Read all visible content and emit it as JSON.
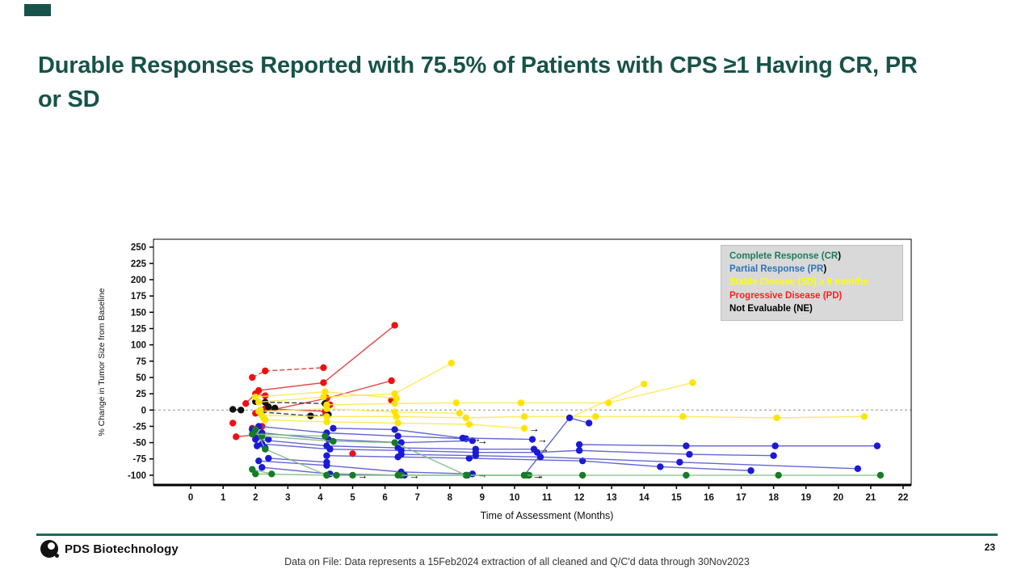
{
  "accent_color": "#17534A",
  "title": "Durable Responses Reported with 75.5% of Patients with CPS ≥1 Having CR, PR or SD",
  "legend": {
    "items": [
      {
        "id": "CR",
        "label": "Complete Response (CR",
        "tail": ")",
        "color": "#1F7A5C"
      },
      {
        "id": "PR",
        "label": "Partial Response (PR",
        "tail": ")",
        "color": "#2E74B5"
      },
      {
        "id": "SD",
        "label": "Stable Disease (SD) ≥ 6 months",
        "tail": "",
        "color": "#FFFF00"
      },
      {
        "id": "PD",
        "label": "Progressive Disease (PD)",
        "tail": "",
        "color": "#FF2020"
      },
      {
        "id": "NE",
        "label": "Not Evaluable (NE)",
        "tail": "",
        "color": "#000000"
      }
    ]
  },
  "chart_data": {
    "type": "line",
    "title": "",
    "xlabel": "Time of Assessment (Months)",
    "ylabel": "% Change in Tumor Size from Baseline",
    "xlim": [
      -1.15,
      22.25
    ],
    "ylim": [
      -115,
      262
    ],
    "x_ticks": [
      0,
      1,
      2,
      3,
      4,
      5,
      6,
      7,
      8,
      9,
      10,
      11,
      12,
      13,
      14,
      15,
      16,
      17,
      18,
      19,
      20,
      21,
      22
    ],
    "y_ticks": [
      250,
      225,
      200,
      175,
      150,
      125,
      100,
      75,
      50,
      25,
      0,
      -25,
      -50,
      -75,
      -100
    ],
    "zero_line": 0,
    "grid": false,
    "legend_position": "top-right",
    "colors": {
      "CR": {
        "marker": "#177B27",
        "line": "#7FBF7F"
      },
      "PR": {
        "marker": "#1A1AD6",
        "line": "#5555D0"
      },
      "SD": {
        "marker": "#FFE400",
        "line": "#FFE84D"
      },
      "PD": {
        "marker": "#EE1111",
        "line": "#E03333"
      },
      "NE": {
        "marker": "#101010",
        "line": "#2A2A2A"
      }
    },
    "series": [
      {
        "group": "PD",
        "dash": true,
        "points": [
          [
            1.9,
            50
          ],
          [
            2.3,
            60
          ],
          [
            4.1,
            65
          ]
        ]
      },
      {
        "group": "PD",
        "points": [
          [
            2.1,
            30
          ],
          [
            4.1,
            42
          ],
          [
            6.3,
            130
          ]
        ]
      },
      {
        "group": "PD",
        "points": [
          [
            1.7,
            10
          ],
          [
            2.0,
            25
          ],
          [
            2.3,
            22
          ]
        ]
      },
      {
        "group": "PD",
        "points": [
          [
            2.0,
            -5
          ],
          [
            4.2,
            18
          ],
          [
            6.2,
            45
          ]
        ]
      },
      {
        "group": "PD",
        "points": [
          [
            2.3,
            2
          ],
          [
            4.15,
            -2
          ],
          [
            4.3,
            8
          ]
        ]
      },
      {
        "group": "PD",
        "points": [
          [
            1.4,
            -41
          ],
          [
            2.0,
            -38
          ]
        ]
      },
      {
        "group": "PD",
        "points": [
          [
            1.3,
            -20
          ]
        ]
      },
      {
        "group": "PD",
        "points": [
          [
            5.0,
            -67
          ]
        ]
      },
      {
        "group": "PD",
        "points": [
          [
            1.9,
            -28
          ],
          [
            2.2,
            -25
          ]
        ]
      },
      {
        "group": "PD",
        "points": [
          [
            6.2,
            15
          ]
        ]
      },
      {
        "group": "NE",
        "points": [
          [
            1.3,
            1
          ],
          [
            1.55,
            0
          ]
        ]
      },
      {
        "group": "NE",
        "dash": true,
        "points": [
          [
            2.0,
            13
          ],
          [
            2.3,
            12
          ],
          [
            4.15,
            10
          ]
        ]
      },
      {
        "group": "NE",
        "dash": true,
        "points": [
          [
            2.2,
            -3
          ],
          [
            3.7,
            -9
          ],
          [
            4.25,
            -7
          ]
        ]
      },
      {
        "group": "NE",
        "points": [
          [
            2.4,
            5
          ],
          [
            2.6,
            3
          ]
        ]
      },
      {
        "group": "SD",
        "points": [
          [
            2.1,
            12
          ],
          [
            4.1,
            20
          ],
          [
            6.3,
            25
          ],
          [
            8.05,
            72
          ]
        ]
      },
      {
        "group": "SD",
        "points": [
          [
            4.2,
            8
          ],
          [
            6.3,
            10
          ],
          [
            8.2,
            11
          ],
          [
            10.2,
            11
          ],
          [
            12.9,
            11
          ],
          [
            15.5,
            42
          ]
        ]
      },
      {
        "group": "SD",
        "points": [
          [
            2.2,
            -8
          ],
          [
            4.2,
            -10
          ],
          [
            6.35,
            -10
          ],
          [
            8.5,
            -12
          ],
          [
            10.3,
            -10
          ],
          [
            12.5,
            -10
          ],
          [
            15.2,
            -10
          ],
          [
            18.1,
            -12
          ],
          [
            20.8,
            -10
          ]
        ]
      },
      {
        "group": "SD",
        "arrow": true,
        "points": [
          [
            2.3,
            -15
          ],
          [
            4.2,
            -18
          ],
          [
            6.4,
            -20
          ],
          [
            8.6,
            -22
          ],
          [
            10.3,
            -28
          ]
        ]
      },
      {
        "group": "SD",
        "points": [
          [
            2.0,
            20
          ],
          [
            4.15,
            28
          ],
          [
            6.35,
            18
          ]
        ]
      },
      {
        "group": "SD",
        "points": [
          [
            2.1,
            -2
          ],
          [
            4.2,
            2
          ],
          [
            6.3,
            -3
          ],
          [
            8.3,
            -5
          ]
        ]
      },
      {
        "group": "SD",
        "points": [
          [
            2.15,
            0
          ],
          [
            2.25,
            -12
          ]
        ]
      },
      {
        "group": "SD",
        "points": [
          [
            11.7,
            -12
          ],
          [
            14.0,
            40
          ]
        ]
      },
      {
        "group": "PR",
        "arrow": true,
        "points": [
          [
            2.1,
            -25
          ],
          [
            4.2,
            -35
          ],
          [
            6.4,
            -40
          ],
          [
            8.5,
            -44
          ]
        ]
      },
      {
        "group": "PR",
        "arrow": true,
        "points": [
          [
            2.2,
            -35
          ],
          [
            4.25,
            -45
          ],
          [
            6.5,
            -50
          ],
          [
            8.7,
            -47
          ]
        ]
      },
      {
        "group": "PR",
        "arrow": true,
        "points": [
          [
            2.0,
            -45
          ],
          [
            4.2,
            -55
          ],
          [
            6.4,
            -58
          ],
          [
            8.8,
            -60
          ],
          [
            10.6,
            -60
          ]
        ]
      },
      {
        "group": "PR",
        "points": [
          [
            2.2,
            -52
          ],
          [
            4.3,
            -60
          ],
          [
            6.5,
            -62
          ],
          [
            8.8,
            -65
          ],
          [
            10.7,
            -65
          ],
          [
            12.0,
            -62
          ],
          [
            15.4,
            -68
          ],
          [
            18.0,
            -70
          ]
        ]
      },
      {
        "group": "PR",
        "points": [
          [
            12.0,
            -53
          ],
          [
            15.3,
            -55
          ],
          [
            18.05,
            -55
          ],
          [
            21.2,
            -55
          ]
        ]
      },
      {
        "group": "PR",
        "points": [
          [
            10.3,
            -100
          ],
          [
            11.7,
            -12
          ],
          [
            12.3,
            -20
          ]
        ]
      },
      {
        "group": "PR",
        "points": [
          [
            4.2,
            -70
          ],
          [
            6.4,
            -72
          ],
          [
            8.6,
            -74
          ],
          [
            12.1,
            -78
          ],
          [
            14.5,
            -87
          ],
          [
            17.3,
            -93
          ]
        ]
      },
      {
        "group": "PR",
        "points": [
          [
            6.5,
            -68
          ],
          [
            8.8,
            -70
          ],
          [
            10.8,
            -72
          ],
          [
            15.1,
            -80
          ],
          [
            20.6,
            -90
          ]
        ]
      },
      {
        "group": "PR",
        "arrow": true,
        "points": [
          [
            2.1,
            -78
          ],
          [
            4.2,
            -85
          ],
          [
            6.5,
            -95
          ],
          [
            8.7,
            -98
          ]
        ]
      },
      {
        "group": "PR",
        "arrow": true,
        "points": [
          [
            2.2,
            -88
          ],
          [
            4.3,
            -98
          ],
          [
            6.6,
            -100
          ]
        ]
      },
      {
        "group": "PR",
        "points": [
          [
            1.9,
            -30
          ],
          [
            2.1,
            -40
          ],
          [
            2.4,
            -45
          ]
        ]
      },
      {
        "group": "PR",
        "points": [
          [
            2.4,
            -74
          ],
          [
            4.2,
            -80
          ]
        ]
      },
      {
        "group": "PR",
        "points": [
          [
            2.05,
            -55
          ],
          [
            2.3,
            -58
          ]
        ]
      },
      {
        "group": "PR",
        "arrow": true,
        "points": [
          [
            4.4,
            -28
          ],
          [
            6.3,
            -30
          ],
          [
            8.4,
            -43
          ],
          [
            10.55,
            -45
          ]
        ]
      },
      {
        "group": "CR",
        "arrow": true,
        "points": [
          [
            2.0,
            -30
          ],
          [
            2.3,
            -60
          ],
          [
            4.2,
            -100
          ],
          [
            6.5,
            -100
          ],
          [
            8.5,
            -100
          ],
          [
            10.4,
            -100
          ]
        ]
      },
      {
        "group": "CR",
        "arrow": true,
        "points": [
          [
            2.2,
            -40
          ],
          [
            4.4,
            -48
          ],
          [
            6.3,
            -50
          ],
          [
            8.5,
            -100
          ],
          [
            10.45,
            -100
          ]
        ]
      },
      {
        "group": "CR",
        "points": [
          [
            2.0,
            -98
          ],
          [
            4.2,
            -100
          ],
          [
            6.4,
            -100
          ],
          [
            8.55,
            -100
          ],
          [
            10.3,
            -100
          ],
          [
            12.1,
            -100
          ],
          [
            15.3,
            -100
          ],
          [
            18.15,
            -100
          ],
          [
            21.3,
            -100
          ]
        ]
      },
      {
        "group": "CR",
        "points": [
          [
            1.9,
            -91
          ],
          [
            2.5,
            -98
          ]
        ]
      },
      {
        "group": "CR",
        "points": [
          [
            1.9,
            -37
          ],
          [
            4.15,
            -40
          ]
        ]
      },
      {
        "group": "CR",
        "arrow": true,
        "points": [
          [
            4.5,
            -100
          ],
          [
            5.0,
            -100
          ]
        ]
      }
    ]
  },
  "footer": {
    "brand": "PDS Biotechnology",
    "page_number": "23",
    "note": "Data on File: Data represents  a 15Feb2024 extraction of all cleaned and Q/C'd data through 30Nov2023",
    "line_color": "#1E6B5A"
  }
}
